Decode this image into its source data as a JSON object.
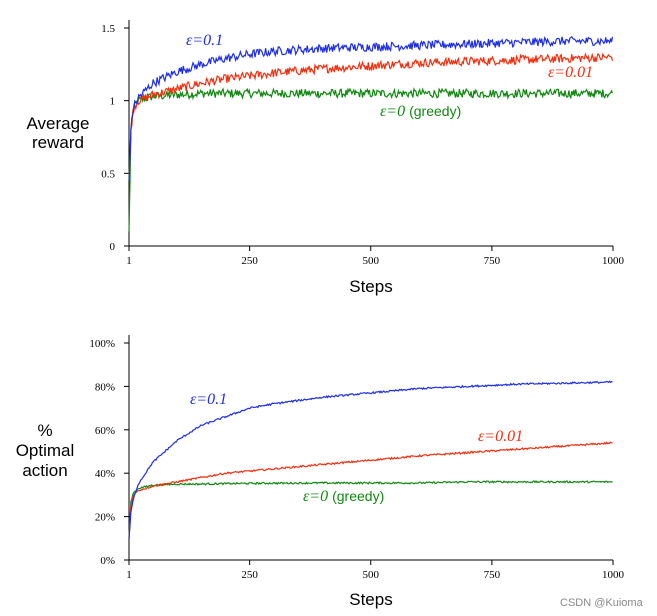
{
  "chart_data": [
    {
      "type": "line",
      "xlabel": "Steps",
      "ylabel_lines": [
        "Average",
        "reward"
      ],
      "xticks": [
        "1",
        "250",
        "500",
        "750",
        "1000"
      ],
      "yticks": [
        "0",
        "0.5",
        "1",
        "1.5"
      ],
      "xlim": [
        1,
        1000
      ],
      "ylim": [
        0,
        1.5
      ],
      "series": [
        {
          "name": "ε=0.1",
          "color": "#1f2fe0",
          "x": [
            1,
            5,
            10,
            20,
            50,
            100,
            150,
            200,
            250,
            300,
            400,
            500,
            600,
            700,
            800,
            900,
            1000
          ],
          "y": [
            0.45,
            0.8,
            0.95,
            1.02,
            1.12,
            1.2,
            1.25,
            1.29,
            1.32,
            1.34,
            1.36,
            1.37,
            1.38,
            1.39,
            1.4,
            1.41,
            1.41
          ]
        },
        {
          "name": "ε=0.01",
          "color": "#ee3010",
          "x": [
            1,
            5,
            10,
            20,
            50,
            100,
            150,
            200,
            250,
            300,
            400,
            500,
            600,
            700,
            800,
            900,
            1000
          ],
          "y": [
            0.45,
            0.8,
            0.95,
            1.0,
            1.04,
            1.08,
            1.12,
            1.15,
            1.17,
            1.19,
            1.22,
            1.24,
            1.26,
            1.27,
            1.28,
            1.29,
            1.3
          ]
        },
        {
          "name": "ε=0 (greedy)",
          "color": "#118811",
          "x": [
            1,
            5,
            10,
            20,
            50,
            100,
            150,
            200,
            250,
            300,
            400,
            500,
            600,
            700,
            800,
            900,
            1000
          ],
          "y": [
            0.1,
            0.8,
            0.95,
            1.0,
            1.03,
            1.04,
            1.05,
            1.05,
            1.05,
            1.05,
            1.05,
            1.05,
            1.05,
            1.05,
            1.05,
            1.05,
            1.05
          ]
        }
      ],
      "legend_labels": [
        {
          "main": "ε=0.1",
          "sub": ""
        },
        {
          "main": "ε=0.01",
          "sub": ""
        },
        {
          "main": "ε=0",
          "sub": "(greedy)"
        }
      ]
    },
    {
      "type": "line",
      "xlabel": "Steps",
      "ylabel_lines": [
        "%",
        "Optimal",
        "action"
      ],
      "xticks": [
        "1",
        "250",
        "500",
        "750",
        "1000"
      ],
      "yticks": [
        "0%",
        "20%",
        "40%",
        "60%",
        "80%",
        "100%"
      ],
      "xlim": [
        1,
        1000
      ],
      "ylim": [
        0,
        100
      ],
      "series": [
        {
          "name": "ε=0.1",
          "color": "#1f2fe0",
          "x": [
            1,
            5,
            10,
            20,
            50,
            100,
            150,
            200,
            250,
            300,
            400,
            500,
            600,
            700,
            800,
            900,
            1000
          ],
          "y": [
            10,
            22,
            28,
            35,
            45,
            55,
            62,
            66,
            70,
            72,
            75,
            77,
            79,
            80,
            81,
            81.5,
            82
          ]
        },
        {
          "name": "ε=0.01",
          "color": "#ee3010",
          "x": [
            1,
            5,
            10,
            20,
            50,
            100,
            150,
            200,
            250,
            300,
            400,
            500,
            600,
            700,
            800,
            900,
            1000
          ],
          "y": [
            10,
            25,
            30,
            32,
            34,
            36,
            38,
            40,
            41,
            42,
            44,
            46,
            48,
            49.5,
            51,
            52.5,
            54
          ]
        },
        {
          "name": "ε=0 (greedy)",
          "color": "#118811",
          "x": [
            1,
            5,
            10,
            20,
            50,
            100,
            150,
            200,
            250,
            300,
            400,
            500,
            600,
            700,
            800,
            900,
            1000
          ],
          "y": [
            10,
            27,
            31,
            33,
            34.5,
            35,
            35,
            35.2,
            35.3,
            35.4,
            35.5,
            35.5,
            35.5,
            36,
            36,
            36,
            36
          ]
        }
      ],
      "legend_labels": [
        {
          "main": "ε=0.1",
          "sub": ""
        },
        {
          "main": "ε=0.01",
          "sub": ""
        },
        {
          "main": "ε=0",
          "sub": "(greedy)"
        }
      ]
    }
  ],
  "watermark": "CSDN @Kuioma"
}
